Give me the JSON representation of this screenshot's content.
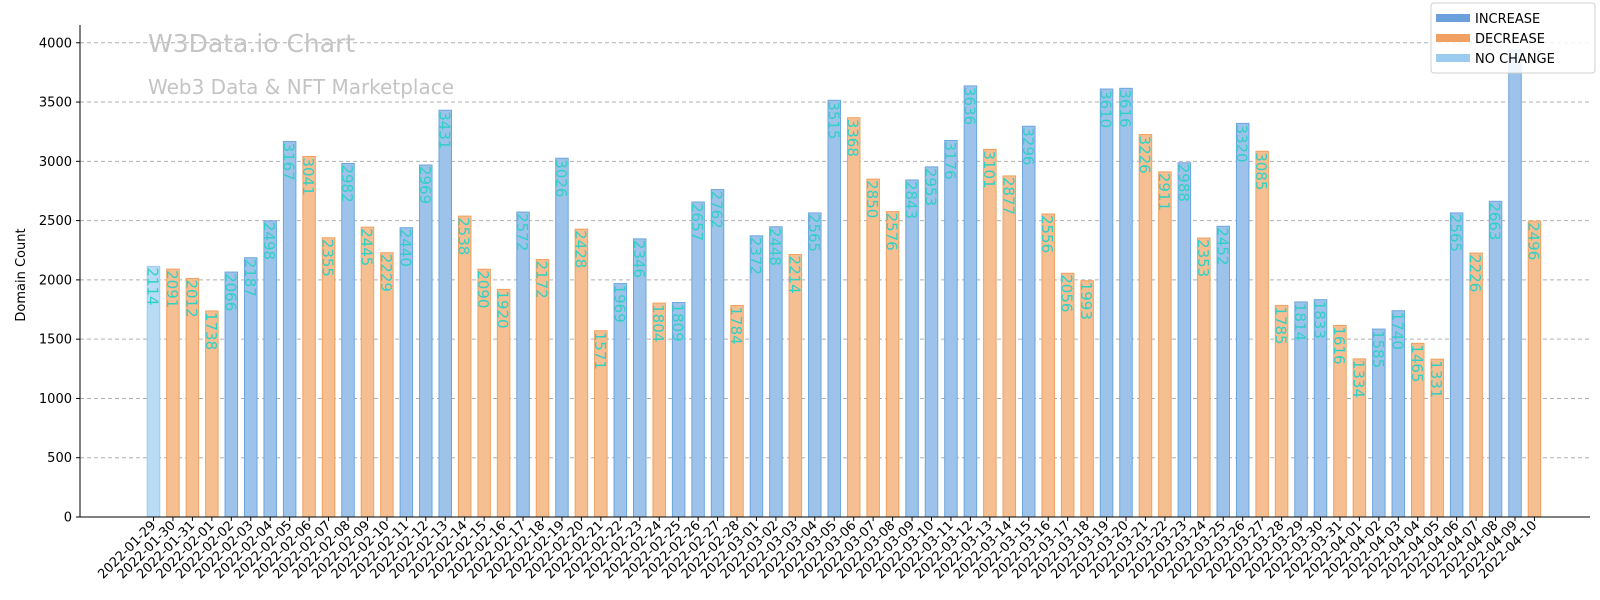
{
  "chart_data": {
    "type": "bar",
    "title": "",
    "watermark": {
      "title": "W3Data.io Chart",
      "subtitle": "Web3 Data & NFT Marketplace"
    },
    "xlabel": "",
    "ylabel": "Domain Count",
    "ylim": [
      0,
      4150
    ],
    "yticks": [
      0,
      500,
      1000,
      1500,
      2000,
      2500,
      3000,
      3500,
      4000
    ],
    "grid": "horizontal dashed",
    "legend_position": "top-right",
    "legend": [
      {
        "key": "increase",
        "label": "INCREASE",
        "color": "#6ca0dc"
      },
      {
        "key": "decrease",
        "label": "DECREASE",
        "color": "#f0a060"
      },
      {
        "key": "nochange",
        "label": "NO CHANGE",
        "color": "#9ccbf0"
      }
    ],
    "colors": {
      "increase": {
        "fill": "#9dc3ea",
        "stroke": "#6ca6de"
      },
      "decrease": {
        "fill": "#f6bf92",
        "stroke": "#f0a060"
      },
      "nochange": {
        "fill": "#b8dcf5",
        "stroke": "#9ccbf0"
      },
      "value_label": "#2fd0c5"
    },
    "categories": [
      "2022-01-29",
      "2022-01-30",
      "2022-01-31",
      "2022-02-01",
      "2022-02-02",
      "2022-02-03",
      "2022-02-04",
      "2022-02-05",
      "2022-02-06",
      "2022-02-07",
      "2022-02-08",
      "2022-02-09",
      "2022-02-10",
      "2022-02-11",
      "2022-02-12",
      "2022-02-13",
      "2022-02-14",
      "2022-02-15",
      "2022-02-16",
      "2022-02-17",
      "2022-02-18",
      "2022-02-19",
      "2022-02-20",
      "2022-02-21",
      "2022-02-22",
      "2022-02-23",
      "2022-02-24",
      "2022-02-25",
      "2022-02-26",
      "2022-02-27",
      "2022-02-28",
      "2022-03-01",
      "2022-03-02",
      "2022-03-03",
      "2022-03-04",
      "2022-03-05",
      "2022-03-06",
      "2022-03-07",
      "2022-03-08",
      "2022-03-09",
      "2022-03-10",
      "2022-03-11",
      "2022-03-12",
      "2022-03-13",
      "2022-03-14",
      "2022-03-15",
      "2022-03-16",
      "2022-03-17",
      "2022-03-18",
      "2022-03-19",
      "2022-03-20",
      "2022-03-21",
      "2022-03-22",
      "2022-03-23",
      "2022-03-24",
      "2022-03-25",
      "2022-03-26",
      "2022-03-27",
      "2022-03-28",
      "2022-03-29",
      "2022-03-30",
      "2022-03-31",
      "2022-04-01",
      "2022-04-02",
      "2022-04-03",
      "2022-04-04",
      "2022-04-05",
      "2022-04-06",
      "2022-04-07",
      "2022-04-08",
      "2022-04-09",
      "2022-04-10"
    ],
    "values": [
      2114,
      2091,
      2012,
      1738,
      2066,
      2187,
      2498,
      3167,
      3041,
      2355,
      2982,
      2445,
      2229,
      2440,
      2969,
      3431,
      2538,
      2090,
      1920,
      2572,
      2172,
      3026,
      2428,
      1571,
      1969,
      2346,
      1804,
      1809,
      2657,
      2762,
      1784,
      2372,
      2448,
      2214,
      2565,
      3515,
      3368,
      2850,
      2576,
      2843,
      2953,
      3176,
      3636,
      3101,
      2877,
      3296,
      2556,
      2056,
      1993,
      3610,
      3616,
      3226,
      2911,
      2988,
      2353,
      2452,
      3320,
      3085,
      1785,
      1814,
      1833,
      1616,
      1334,
      1585,
      1740,
      1465,
      1331,
      2565,
      2226,
      2663,
      3940,
      2496
    ],
    "value_labels": [
      "2114",
      "2091",
      "2012",
      "1738",
      "2066",
      "2187",
      "2498",
      "3167",
      "3041",
      "2355",
      "2982",
      "2445",
      "2229",
      "2440",
      "2969",
      "3431",
      "2538",
      "2090",
      "1920",
      "2572",
      "2172",
      "3026",
      "2428",
      "1571",
      "1969",
      "2346",
      "1804",
      "1809",
      "2657",
      "2762",
      "1784",
      "2372",
      "2448",
      "2214",
      "2565",
      "3515",
      "3368",
      "2850",
      "2576",
      "2843",
      "2953",
      "3176",
      "3636",
      "3101",
      "2877",
      "3296",
      "2556",
      "2056",
      "1993",
      "3610",
      "3616",
      "3226",
      "2911",
      "2988",
      "2353",
      "2452",
      "3320",
      "3085",
      "1785",
      "1814",
      "1833",
      "1616",
      "1334",
      "1585",
      "1740",
      "1465",
      "1331",
      "2565",
      "2226",
      "2663",
      "",
      "2496"
    ]
  }
}
